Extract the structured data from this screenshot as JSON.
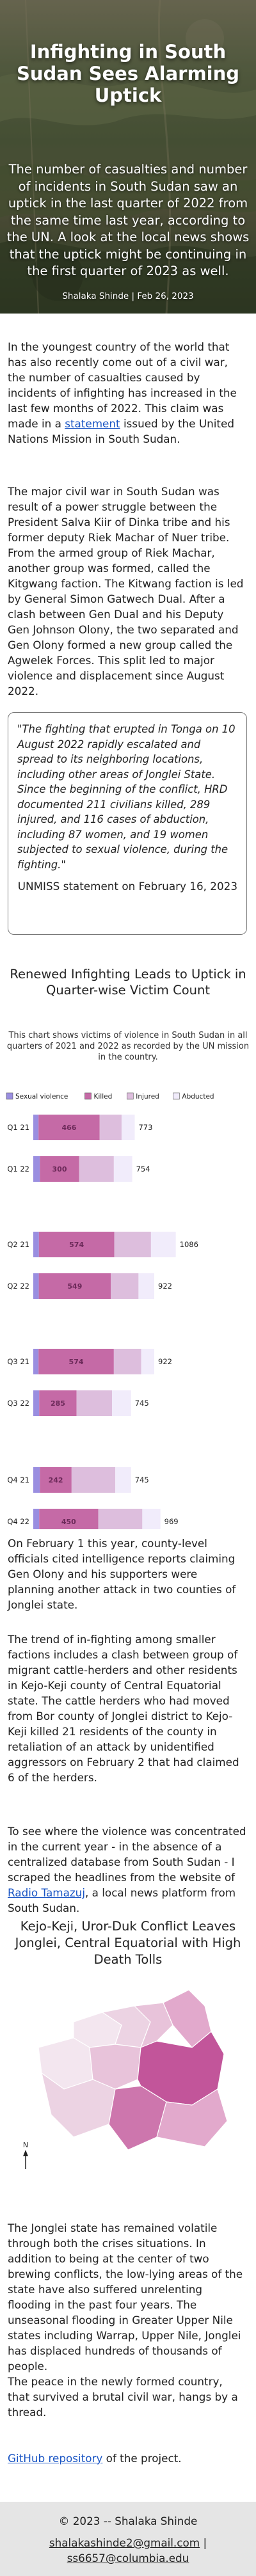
{
  "hero": {
    "title": "Infighting in South Sudan Sees Alarming Uptick",
    "subtitle": "The number of casualties and number of incidents in South Sudan saw an uptick in the last quarter of 2022 from the same time last year, according to the UN. A look at the local news shows that the uptick might be continuing in the first quarter of 2023 as well.",
    "byline": "Shalaka Shinde | Feb 26, 2023"
  },
  "para1": {
    "before_link": "In the youngest country of the world that has also recently come out of a civil war, the number of casualties caused by incidents of infighting has increased in the last few months of 2022. This claim was made in a ",
    "link": "statement",
    "after_link": " issued by the United Nations Mission in South Sudan."
  },
  "para2": "The major civil war in South Sudan was result of a power struggle between the President Salva Kiir of Dinka tribe and his former deputy Riek Machar of Nuer tribe. From the armed group of Riek Machar, another group was formed, called the Kitgwang faction. The Kitwang faction is led by General Simon Gatwech Dual. After a clash between Gen Dual and his Deputy Gen Johnson Olony, the two separated and Gen Olony formed a new group called the Agwelek Forces. This split led to major violence and displacement since August 2022.",
  "quote": {
    "text": "\"The fighting that erupted in Tonga on 10 August 2022 rapidly escalated and spread to its neighboring locations, including other areas of Jonglei State. Since the beginning of the conflict, HRD documented 211 civilians killed, 289 injured, and 116 cases of abduction, including 87 women, and 19 women subjected to sexual violence, during the fighting.\"",
    "attribution": "UNMISS statement on February 16, 2023"
  },
  "chart_header": {
    "title": "Renewed Infighting Leads to Uptick in Quarter-wise Victim Count",
    "subtitle": "This chart shows victims of violence in South Sudan in all quarters of 2021 and 2022 as recorded by the UN mission in the country."
  },
  "chart_data": {
    "type": "bar",
    "orientation": "horizontal",
    "stacked": true,
    "categories": [
      "Q1 21",
      "Q1 22",
      "Q2 21",
      "Q2 22",
      "Q3 21",
      "Q3 22",
      "Q4 21",
      "Q4 22"
    ],
    "series": [
      {
        "name": "Sexual violence",
        "values": [
          40,
          50,
          43,
          42,
          40,
          45,
          50,
          45
        ]
      },
      {
        "name": "Killed",
        "values": [
          466,
          300,
          574,
          549,
          574,
          285,
          242,
          450
        ]
      },
      {
        "name": "Injured",
        "values": [
          167,
          264,
          280,
          211,
          208,
          270,
          333,
          336
        ]
      },
      {
        "name": "Abducted",
        "values": [
          100,
          140,
          189,
          120,
          100,
          145,
          120,
          138
        ]
      }
    ],
    "totals": [
      773,
      754,
      1086,
      922,
      922,
      745,
      745,
      969
    ],
    "legend_position": "top",
    "grid": false,
    "colors": {
      "Sexual violence": "#9a8ee0",
      "Killed": "#c56aa6",
      "Injured": "#ddbedd",
      "Abducted": "#f1ecfb"
    }
  },
  "para3": "On February 1 this year, county-level officials cited intelligence reports claiming Gen Olony and his supporters were planning another attack in two counties of Jonglei state.",
  "para4": "The trend of in-fighting among smaller factions includes a clash between group of migrant cattle-herders and other residents in Kejo-Keji county of Central Equatorial state. The cattle herders who had moved from Bor county of Jonglei district to Kejo-Keji killed 21 residents of the county in retaliation of an attack by unidentified aggressors on February 2 that had claimed 6 of the herders.",
  "para5": {
    "before_link": "To see where the violence was concentrated in the current year - in the absence of a centralized database from South Sudan - I scraped the headlines from the website of ",
    "link": "Radio Tamazuj",
    "after_link": ", a local news platform from South Sudan."
  },
  "map": {
    "title": "Kejo-Keji, Uror-Duk Conflict Leaves Jonglei, Central Equatorial with High Death Tolls",
    "north_label": "N"
  },
  "para6": "The Jonglei state has remained volatile through both the crises situations. In addition to being at the center of two brewing conflicts, the low-lying areas of the state have also suffered unrelenting flooding in the past four years. The unseasonal flooding in Greater Upper Nile states including Warrap, Upper Nile, Jonglei has displaced hundreds of thousands of people.",
  "para7": "The peace in the newly formed country, that survived a brutal civil war, hangs by a thread.",
  "para8": {
    "link": "GitHub repository",
    "after_link": " of the project."
  },
  "footer": {
    "copyright": "© 2023 -- Shalaka Shinde",
    "email1": "shalakashinde2@gmail.com",
    "separator": " | ",
    "email2": "ss6657@columbia.edu"
  },
  "colors": {
    "link": "#1a55c4",
    "map_dark": "#c2559a",
    "map_mid": "#e2a9cc",
    "map_light": "#f3e6ef",
    "footer_bg": "#e5e5e5"
  }
}
